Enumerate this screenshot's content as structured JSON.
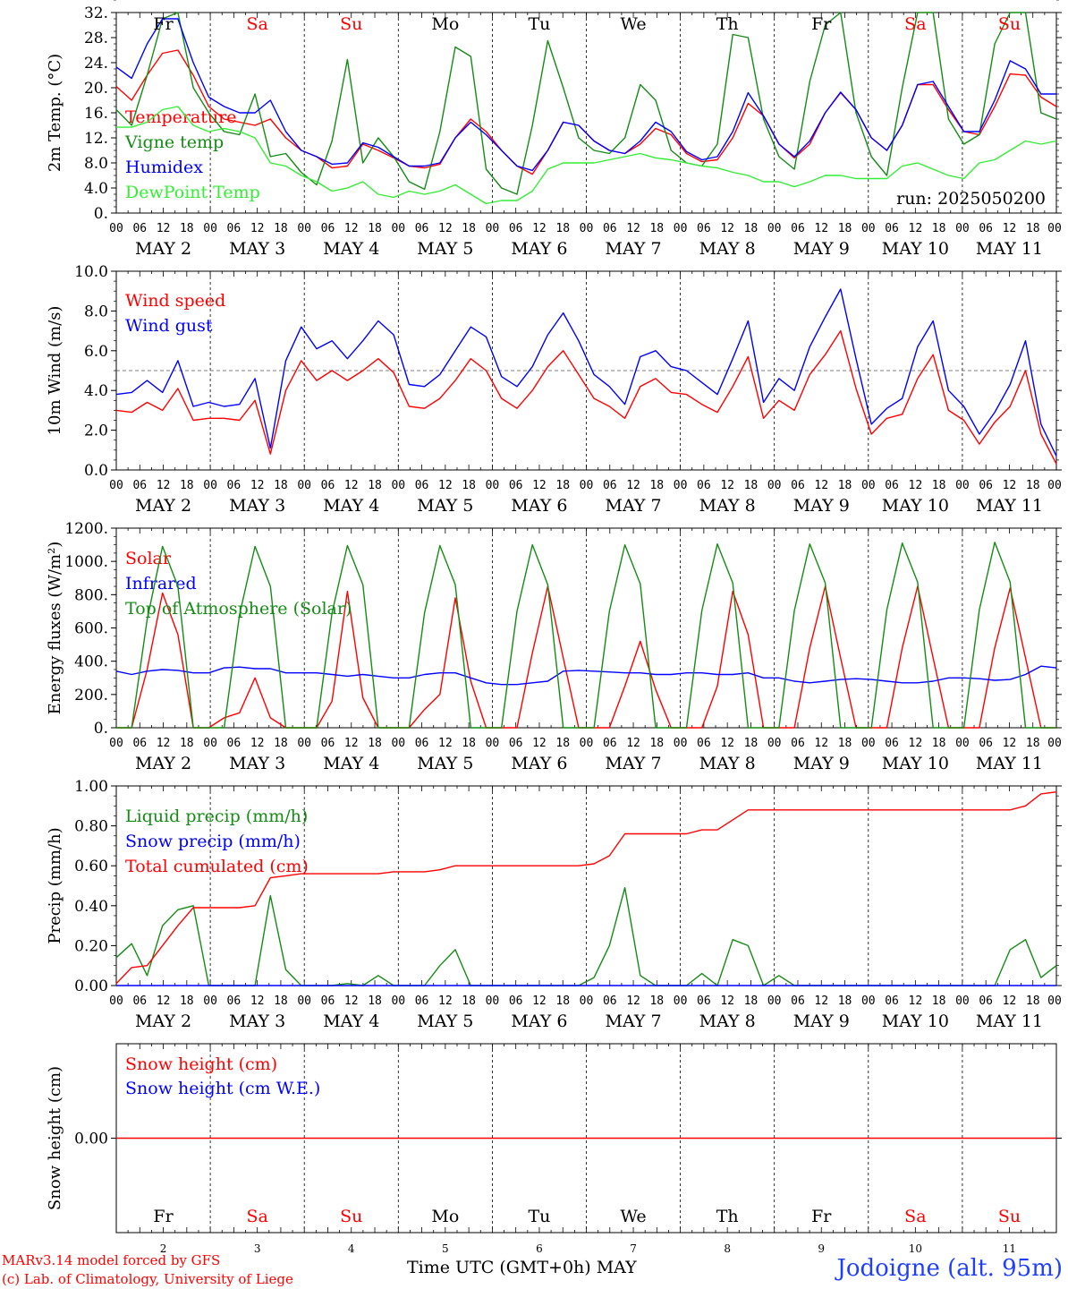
{
  "footer": {
    "model_line": "MARv3.14 model forced by GFS",
    "credit_line": "(c) Lab. of Climatology, University of Liege",
    "time_label": "Time UTC (GMT+0h) MAY",
    "station": "Jodoigne (alt. 95m)"
  },
  "colors": {
    "red": "#ff0000",
    "green": "#148c14",
    "blue": "#0000ff",
    "lightgreen": "#33ee33"
  },
  "chart_data": [
    {
      "type": "line",
      "ylabel": "2m Temp. (°C)",
      "ylim": [
        0,
        32
      ],
      "ytick_labels": [
        "0.",
        "4.0",
        "8.0",
        "12.",
        "16.",
        "20.",
        "24.",
        "28.",
        "32."
      ],
      "ytick_values": [
        0,
        4,
        8,
        12,
        16,
        20,
        24,
        28,
        32
      ],
      "run_label": "run: 2025050200",
      "days_top": [
        {
          "label": "Fr",
          "color": "black"
        },
        {
          "label": "Sa",
          "color": "red"
        },
        {
          "label": "Su",
          "color": "red"
        },
        {
          "label": "Mo",
          "color": "black"
        },
        {
          "label": "Tu",
          "color": "black"
        },
        {
          "label": "We",
          "color": "black"
        },
        {
          "label": "Th",
          "color": "black"
        },
        {
          "label": "Fr",
          "color": "black"
        },
        {
          "label": "Sa",
          "color": "red"
        },
        {
          "label": "Su",
          "color": "red"
        }
      ],
      "series": [
        {
          "name": "Temperature",
          "color": "red",
          "values": [
            20.2,
            18,
            22,
            25.5,
            26,
            22,
            17,
            15,
            14.5,
            14,
            15,
            12,
            10,
            9,
            7.2,
            7.5,
            11,
            10,
            8.8,
            7.5,
            7.2,
            7.8,
            12,
            15,
            13,
            10,
            7.5,
            6.2,
            10,
            14.5,
            14,
            11.5,
            10,
            9.5,
            11,
            13.5,
            12.5,
            9.5,
            8.2,
            8.5,
            12,
            17.5,
            15.5,
            11,
            8.8,
            11,
            16,
            19.2,
            16.5,
            12,
            10,
            14,
            20.5,
            20.5,
            16.5,
            13,
            12.5,
            17,
            22.2,
            22,
            18.5,
            17
          ]
        },
        {
          "name": "Vigne temp",
          "color": "green",
          "values": [
            16.5,
            14,
            22,
            31,
            32,
            20,
            16,
            13,
            12.5,
            19,
            9,
            9.5,
            6.5,
            4.5,
            11.5,
            24.5,
            8,
            12,
            9,
            5,
            3.8,
            13,
            26.5,
            25,
            7,
            4,
            3,
            14,
            27.5,
            20,
            12,
            10,
            9.5,
            12,
            20.5,
            18,
            10,
            8,
            7.5,
            11,
            28.5,
            28,
            15,
            9,
            7,
            21,
            30,
            32,
            16,
            9,
            6,
            20,
            32,
            32,
            15,
            11,
            12.5,
            27,
            32,
            32,
            16,
            15
          ]
        },
        {
          "name": "Humidex",
          "color": "blue",
          "values": [
            23.3,
            21.5,
            27,
            31,
            31,
            24,
            18.5,
            17,
            16,
            16,
            18,
            13,
            10,
            9,
            7.8,
            8,
            11.2,
            10.5,
            9,
            7.5,
            7.5,
            8,
            12,
            14.5,
            12.5,
            10,
            7.5,
            6.8,
            10,
            14.5,
            14,
            11.5,
            10,
            9.5,
            11.5,
            14.5,
            13,
            9.8,
            8.5,
            9,
            13,
            19.2,
            15.5,
            11,
            9,
            11.5,
            16,
            19.3,
            16.5,
            12,
            10,
            14,
            20.5,
            21,
            17,
            13,
            13,
            18,
            24.3,
            23,
            19,
            19
          ]
        },
        {
          "name": "DewPoint Temp",
          "color": "lightgreen",
          "values": [
            13.7,
            13.7,
            14.5,
            16.5,
            17,
            14,
            13,
            13.5,
            13,
            12,
            8,
            7.5,
            6,
            5,
            3.5,
            4,
            5,
            3,
            2.5,
            3.5,
            3,
            3.5,
            4.5,
            3,
            1.5,
            2,
            2,
            3.5,
            7,
            8,
            8,
            8,
            8.5,
            9,
            9.5,
            8.8,
            8.5,
            8,
            7.5,
            7.2,
            6.5,
            6,
            5,
            5,
            4.2,
            5,
            6,
            6,
            5.5,
            5.5,
            5.5,
            7.5,
            8,
            7,
            6,
            5.5,
            8,
            8.5,
            10,
            11.5,
            11,
            11.5
          ]
        }
      ]
    },
    {
      "type": "line",
      "ylabel": "10m Wind (m/s)",
      "ylim": [
        0,
        10
      ],
      "ytick_labels": [
        "0.0",
        "2.0",
        "4.0",
        "6.0",
        "8.0",
        "10.0"
      ],
      "ytick_values": [
        0,
        2,
        4,
        6,
        8,
        10
      ],
      "reference_line": 5,
      "series": [
        {
          "name": "Wind speed",
          "color": "red",
          "values": [
            3,
            2.9,
            3.4,
            3,
            4.1,
            2.5,
            2.6,
            2.6,
            2.5,
            3.5,
            0.8,
            4,
            5.5,
            4.5,
            5,
            4.5,
            5,
            5.6,
            4.9,
            3.2,
            3.1,
            3.6,
            4.5,
            5.6,
            5,
            3.6,
            3.1,
            4,
            5.2,
            6,
            4.8,
            3.6,
            3.2,
            2.6,
            4.2,
            4.6,
            3.9,
            3.8,
            3.3,
            2.9,
            4.2,
            5.7,
            2.6,
            3.5,
            3,
            4.8,
            5.8,
            7,
            4.1,
            1.8,
            2.6,
            2.8,
            4.6,
            5.8,
            3,
            2.5,
            1.3,
            2.4,
            3.2,
            5,
            1.8,
            0.3
          ]
        },
        {
          "name": "Wind gust",
          "color": "blue",
          "values": [
            3.8,
            3.9,
            4.5,
            3.9,
            5.5,
            3.2,
            3.4,
            3.2,
            3.3,
            4.6,
            1.1,
            5.5,
            7.2,
            6.1,
            6.5,
            5.6,
            6.5,
            7.5,
            6.8,
            4.3,
            4.2,
            4.8,
            6,
            7.2,
            6.7,
            4.7,
            4.2,
            5.2,
            6.8,
            7.9,
            6.5,
            4.8,
            4.2,
            3.3,
            5.7,
            6,
            5.2,
            5,
            4.4,
            3.8,
            5.6,
            7.5,
            3.4,
            4.6,
            4,
            6.2,
            7.7,
            9.1,
            5.6,
            2.3,
            3.1,
            3.6,
            6.2,
            7.5,
            4,
            3.2,
            1.8,
            2.9,
            4.3,
            6.5,
            2.3,
            0.7
          ]
        }
      ]
    },
    {
      "type": "line",
      "ylabel": "Energy fluxes (W/m²)",
      "ylim": [
        0,
        1200
      ],
      "ytick_labels": [
        "0.",
        "200.",
        "400.",
        "600.",
        "800.",
        "1000.",
        "1200."
      ],
      "ytick_values": [
        0,
        200,
        400,
        600,
        800,
        1000,
        1200
      ],
      "series": [
        {
          "name": "Solar",
          "color": "red",
          "values": [
            0,
            0,
            350,
            810,
            560,
            0,
            0,
            60,
            90,
            300,
            60,
            0,
            0,
            0,
            160,
            820,
            180,
            0,
            0,
            0,
            110,
            200,
            780,
            280,
            0,
            0,
            0,
            450,
            850,
            420,
            0,
            0,
            0,
            250,
            520,
            230,
            0,
            0,
            0,
            250,
            820,
            560,
            0,
            0,
            0,
            480,
            850,
            420,
            0,
            0,
            0,
            480,
            850,
            420,
            0,
            0,
            0,
            480,
            840,
            420,
            0,
            0
          ]
        },
        {
          "name": "Infrared",
          "color": "blue",
          "values": [
            340,
            320,
            340,
            350,
            345,
            330,
            330,
            360,
            365,
            355,
            355,
            330,
            330,
            330,
            320,
            310,
            320,
            310,
            300,
            300,
            320,
            330,
            330,
            300,
            270,
            260,
            260,
            270,
            280,
            340,
            345,
            340,
            335,
            330,
            330,
            320,
            320,
            330,
            330,
            320,
            320,
            330,
            300,
            300,
            280,
            270,
            280,
            290,
            295,
            290,
            280,
            270,
            270,
            280,
            300,
            300,
            295,
            285,
            290,
            320,
            370,
            360
          ]
        },
        {
          "name": "Top of Atmosphere (Solar)",
          "color": "green",
          "values": [
            0,
            0,
            650,
            1090,
            850,
            0,
            0,
            0,
            680,
            1090,
            850,
            0,
            0,
            0,
            690,
            1095,
            860,
            0,
            0,
            0,
            690,
            1095,
            860,
            0,
            0,
            0,
            700,
            1100,
            860,
            0,
            0,
            0,
            700,
            1100,
            865,
            0,
            0,
            0,
            705,
            1105,
            870,
            0,
            0,
            0,
            705,
            1105,
            870,
            0,
            0,
            0,
            710,
            1110,
            875,
            0,
            0,
            0,
            710,
            1115,
            875,
            0,
            0,
            0
          ]
        }
      ]
    },
    {
      "type": "line",
      "ylabel": "Precip (mm/h)",
      "ylim": [
        0,
        1
      ],
      "ytick_labels": [
        "0.00",
        "0.20",
        "0.40",
        "0.60",
        "0.80",
        "1.00"
      ],
      "ytick_values": [
        0,
        0.2,
        0.4,
        0.6,
        0.8,
        1
      ],
      "series": [
        {
          "name": "Liquid precip (mm/h)",
          "color": "green",
          "values": [
            0.14,
            0.21,
            0.05,
            0.3,
            0.38,
            0.4,
            0,
            0,
            0,
            0,
            0.45,
            0.08,
            0,
            0,
            0,
            0.01,
            0,
            0.05,
            0,
            0,
            0,
            0.1,
            0.18,
            0,
            0,
            0,
            0,
            0,
            0,
            0,
            0,
            0.04,
            0.2,
            0.49,
            0.05,
            0,
            0,
            0,
            0.06,
            0,
            0.23,
            0.2,
            0,
            0.05,
            0,
            0,
            0,
            0,
            0,
            0,
            0,
            0,
            0,
            0,
            0,
            0,
            0,
            0,
            0.18,
            0.23,
            0.04,
            0.1
          ]
        },
        {
          "name": "Snow precip (mm/h)",
          "color": "blue",
          "values": [
            0,
            0,
            0,
            0,
            0,
            0,
            0,
            0,
            0,
            0,
            0,
            0,
            0,
            0,
            0,
            0,
            0,
            0,
            0,
            0,
            0,
            0,
            0,
            0,
            0,
            0,
            0,
            0,
            0,
            0,
            0,
            0,
            0,
            0,
            0,
            0,
            0,
            0,
            0,
            0,
            0,
            0,
            0,
            0,
            0,
            0,
            0,
            0,
            0,
            0,
            0,
            0,
            0,
            0,
            0,
            0,
            0,
            0,
            0,
            0,
            0,
            0
          ]
        },
        {
          "name": "Total cumulated (cm)",
          "color": "red",
          "values": [
            0.01,
            0.09,
            0.1,
            0.2,
            0.3,
            0.39,
            0.39,
            0.39,
            0.39,
            0.4,
            0.54,
            0.55,
            0.56,
            0.56,
            0.56,
            0.56,
            0.56,
            0.56,
            0.57,
            0.57,
            0.57,
            0.58,
            0.6,
            0.6,
            0.6,
            0.6,
            0.6,
            0.6,
            0.6,
            0.6,
            0.6,
            0.61,
            0.65,
            0.76,
            0.76,
            0.76,
            0.76,
            0.76,
            0.78,
            0.78,
            0.83,
            0.88,
            0.88,
            0.88,
            0.88,
            0.88,
            0.88,
            0.88,
            0.88,
            0.88,
            0.88,
            0.88,
            0.88,
            0.88,
            0.88,
            0.88,
            0.88,
            0.88,
            0.88,
            0.9,
            0.96,
            0.97
          ]
        }
      ]
    },
    {
      "type": "line",
      "ylabel": "Snow height (cm)",
      "ylim": [
        -1,
        1
      ],
      "ytick_labels": [
        "0.00"
      ],
      "ytick_values": [
        0
      ],
      "days_bottom": [
        {
          "label": "Fr",
          "num": "2",
          "color": "black"
        },
        {
          "label": "Sa",
          "num": "3",
          "color": "red"
        },
        {
          "label": "Su",
          "num": "4",
          "color": "red"
        },
        {
          "label": "Mo",
          "num": "5",
          "color": "black"
        },
        {
          "label": "Tu",
          "num": "6",
          "color": "black"
        },
        {
          "label": "We",
          "num": "7",
          "color": "black"
        },
        {
          "label": "Th",
          "num": "8",
          "color": "black"
        },
        {
          "label": "Fr",
          "num": "9",
          "color": "black"
        },
        {
          "label": "Sa",
          "num": "10",
          "color": "red"
        },
        {
          "label": "Su",
          "num": "11",
          "color": "red"
        }
      ],
      "series": [
        {
          "name": "Snow height (cm)",
          "color": "red",
          "values": [
            0,
            0
          ]
        },
        {
          "name": "Snow height (cm W.E.)",
          "color": "blue",
          "values": []
        }
      ]
    }
  ],
  "x_axis": {
    "hour_labels": [
      "00",
      "06",
      "12",
      "18"
    ],
    "final_hour_label": "00",
    "date_labels": [
      "MAY  2",
      "MAY  3",
      "MAY  4",
      "MAY  5",
      "MAY  6",
      "MAY  7",
      "MAY  8",
      "MAY  9",
      "MAY 10",
      "MAY 11"
    ]
  }
}
